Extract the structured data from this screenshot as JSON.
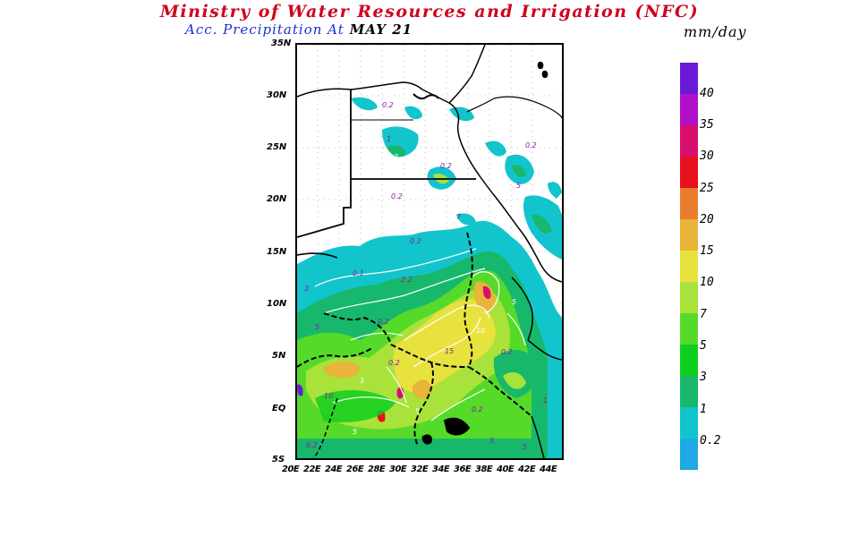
{
  "header": {
    "title": "Ministry of Water Resources and Irrigation (NFC)",
    "subtitle_label": "Acc. Precipitation  At",
    "subtitle_date": "MAY 21",
    "units": "mm/day"
  },
  "map": {
    "lat_labels": [
      "35N",
      "30N",
      "25N",
      "20N",
      "15N",
      "10N",
      "5N",
      "EQ",
      "5S"
    ],
    "lon_labels": [
      "20E",
      "22E",
      "24E",
      "26E",
      "28E",
      "30E",
      "32E",
      "34E",
      "36E",
      "38E",
      "40E",
      "42E",
      "44E"
    ],
    "lat_range": [
      -5,
      35
    ],
    "lon_range": [
      20,
      45
    ],
    "contour_labels": [
      "0.2",
      "1",
      "3",
      "5",
      "7",
      "10",
      "2.2",
      "0.1",
      "15"
    ]
  },
  "legend": {
    "levels": [
      "0.2",
      "1",
      "3",
      "5",
      "7",
      "10",
      "15",
      "20",
      "25",
      "30",
      "35",
      "40"
    ],
    "colors": [
      "#1fa9e5",
      "#12c4cc",
      "#17b86c",
      "#0fcf1e",
      "#56da2a",
      "#a8e23a",
      "#e8e23e",
      "#e8b43a",
      "#ea7d2c",
      "#e8101c",
      "#d8106c",
      "#b010c8",
      "#6a1ad6"
    ]
  }
}
